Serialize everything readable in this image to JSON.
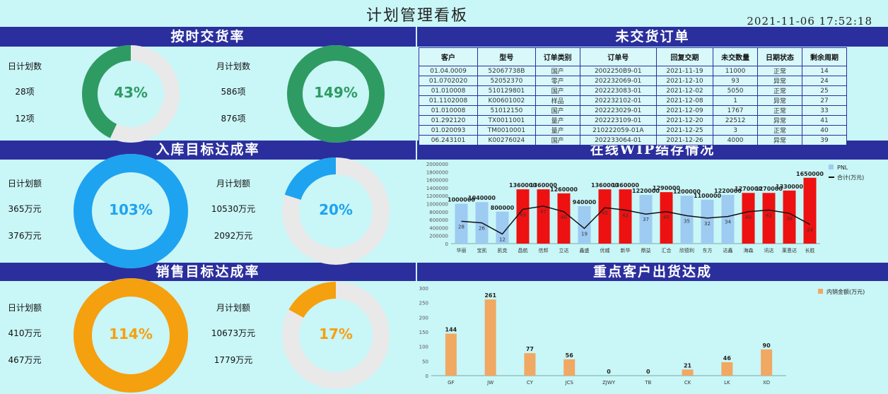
{
  "header": {
    "title": "计划管理看板",
    "datetime": "2021-11-06  17:52:18"
  },
  "ontime": {
    "title": "按时交货率",
    "day": {
      "label": "日计划数",
      "plan": "28项",
      "actual": "12项",
      "percent_text": "43%",
      "fill": 0.43
    },
    "month": {
      "label": "月计划数",
      "plan": "586项",
      "actual": "876项",
      "percent_text": "149%",
      "fill": 1.0
    },
    "color": "#2e9b63"
  },
  "inbound": {
    "title": "入库目标达成率",
    "day": {
      "label": "日计划额",
      "plan": "365万元",
      "actual": "376万元",
      "percent_text": "103%",
      "fill": 1.0
    },
    "month": {
      "label": "月计划额",
      "plan": "10530万元",
      "actual": "2092万元",
      "percent_text": "20%",
      "fill": 0.2
    },
    "color": "#1ea3f0"
  },
  "sales": {
    "title": "销售目标达成率",
    "day": {
      "label": "日计划额",
      "plan": "410万元",
      "actual": "467万元",
      "percent_text": "114%",
      "fill": 1.0
    },
    "month": {
      "label": "月计划额",
      "plan": "10673万元",
      "actual": "1779万元",
      "percent_text": "17%",
      "fill": 0.17
    },
    "color": "#f5a00f"
  },
  "orders": {
    "title": "未交货订单",
    "columns": [
      "客户",
      "型号",
      "订单类别",
      "订单号",
      "回复交期",
      "未交数量",
      "日期状态",
      "剩余周期"
    ],
    "rows": [
      [
        "01.04.0009",
        "52067738B",
        "国产",
        "2002250B9-01",
        "2021-11-19",
        "11000",
        "正常",
        "14"
      ],
      [
        "01.0702020",
        "52052370",
        "零产",
        "202232069-01",
        "2021-12-10",
        "93",
        "异常",
        "24"
      ],
      [
        "01.010008",
        "510129801",
        "国产",
        "202223083-01",
        "2021-12-02",
        "5050",
        "正常",
        "25"
      ],
      [
        "01.1102008",
        "K00601002",
        "样品",
        "202232102-01",
        "2021-12-08",
        "1",
        "异常",
        "27"
      ],
      [
        "01.010008",
        "51012150",
        "国产",
        "202223029-01",
        "2021-12-09",
        "1767",
        "正常",
        "33"
      ],
      [
        "01.292120",
        "TX0011001",
        "量产",
        "202223109-01",
        "2021-12-20",
        "22512",
        "异常",
        "41"
      ],
      [
        "01.020093",
        "TM0010001",
        "量产",
        "210222059-01A",
        "2021-12-25",
        "3",
        "正常",
        "40"
      ],
      [
        "06.243101",
        "K00276024",
        "国产",
        "202233064-01",
        "2021-12-26",
        "4000",
        "异常",
        "39"
      ]
    ]
  },
  "chart_data": [
    {
      "type": "bar",
      "title": "在线WIP结存情况",
      "ylim": [
        0,
        2000000
      ],
      "yticks": [
        0,
        200000,
        400000,
        600000,
        800000,
        1000000,
        1200000,
        1400000,
        1600000,
        1800000,
        2000000
      ],
      "categories": [
        "华丽",
        "宝凯",
        "凯克",
        "昌航",
        "信邦",
        "立达",
        "鑫盛",
        "优威",
        "新华",
        "鼎益",
        "汇合",
        "欣德利",
        "东方",
        "达鑫",
        "海森",
        "讯达",
        "莱恩达",
        "长胜"
      ],
      "series": [
        {
          "name": "PNL",
          "values": [
            1000000,
            1040000,
            800000,
            1360000,
            1360000,
            1260000,
            940000,
            1360000,
            1360000,
            1220000,
            1290000,
            1200000,
            1100000,
            1220000,
            1270000,
            1270000,
            1330000,
            1650000
          ],
          "colors": [
            "#9ecbf2",
            "#9ecbf2",
            "#9ecbf2",
            "#ee1111",
            "#ee1111",
            "#ee1111",
            "#9ecbf2",
            "#ee1111",
            "#ee1111",
            "#9ecbf2",
            "#ee1111",
            "#9ecbf2",
            "#9ecbf2",
            "#9ecbf2",
            "#ee1111",
            "#ee1111",
            "#ee1111",
            "#ee1111"
          ]
        },
        {
          "name": "合计(万元)",
          "type": "line",
          "values": [
            28,
            26,
            12,
            43,
            47,
            40,
            19,
            45,
            42,
            37,
            40,
            35,
            32,
            34,
            40,
            42,
            38,
            24
          ]
        }
      ],
      "legend": "top-right"
    },
    {
      "type": "bar",
      "title": "重点客户出货达成",
      "ylim": [
        0,
        300
      ],
      "yticks": [
        0,
        50,
        100,
        150,
        200,
        250,
        300
      ],
      "categories": [
        "GF",
        "JW",
        "CY",
        "JCS",
        "ZJWY",
        "TB",
        "CK",
        "LK",
        "XD"
      ],
      "series": [
        {
          "name": "内销金额(万元)",
          "values": [
            144,
            261,
            77,
            56,
            0,
            0,
            21,
            46,
            90
          ],
          "color": "#f0a862"
        }
      ],
      "legend": "top-right"
    }
  ]
}
